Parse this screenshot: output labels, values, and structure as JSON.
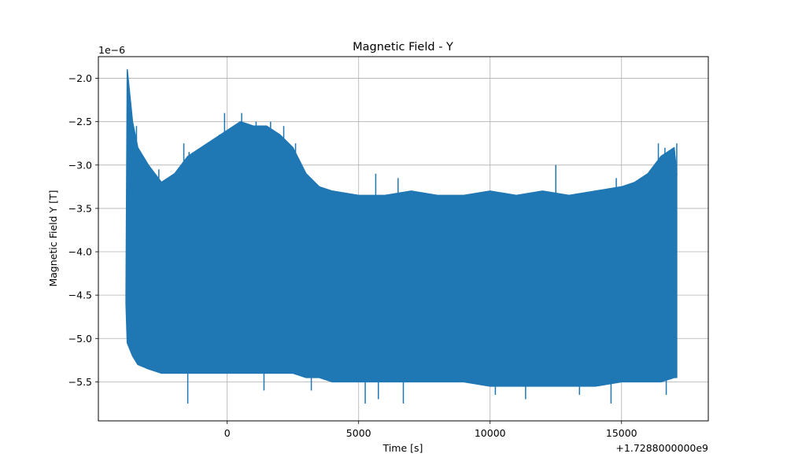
{
  "chart_data": {
    "type": "line",
    "title": "Magnetic Field - Y",
    "xlabel": "Time [s]",
    "ylabel": "Magnetic Field Y [T]",
    "x_offset_text": "+1.7288000000e9",
    "y_scale_text": "1e−6",
    "x_ticks": [
      0,
      5000,
      10000,
      15000
    ],
    "x_tick_labels": [
      "0",
      "5000",
      "10000",
      "15000"
    ],
    "y_ticks": [
      -2.0,
      -2.5,
      -3.0,
      -3.5,
      -4.0,
      -4.5,
      -5.0,
      -5.5
    ],
    "y_tick_labels": [
      "−2.0",
      "−2.5",
      "−3.0",
      "−3.5",
      "−4.0",
      "−4.5",
      "−5.0",
      "−5.5"
    ],
    "xlim": [
      -4900,
      18300
    ],
    "ylim": [
      -5.95,
      -1.75
    ],
    "grid": true,
    "color": "#1f77b4",
    "series": [
      {
        "name": "",
        "envelope_x": [
          -3850,
          -3800,
          -3600,
          -3400,
          -3000,
          -2500,
          -2000,
          -1500,
          -1000,
          -500,
          0,
          500,
          1000,
          1500,
          2000,
          2500,
          3000,
          3500,
          4000,
          5000,
          6000,
          7000,
          8000,
          9000,
          10000,
          11000,
          12000,
          13000,
          14000,
          15000,
          15500,
          16000,
          16500,
          17000,
          17100
        ],
        "envelope_upper": [
          -4.5,
          -1.9,
          -2.5,
          -2.8,
          -3.0,
          -3.2,
          -3.1,
          -2.9,
          -2.8,
          -2.7,
          -2.6,
          -2.5,
          -2.55,
          -2.55,
          -2.65,
          -2.8,
          -3.1,
          -3.25,
          -3.3,
          -3.35,
          -3.35,
          -3.3,
          -3.35,
          -3.35,
          -3.3,
          -3.35,
          -3.3,
          -3.35,
          -3.3,
          -3.25,
          -3.2,
          -3.1,
          -2.9,
          -2.8,
          -3.1
        ],
        "envelope_lower": [
          -4.6,
          -5.05,
          -5.2,
          -5.3,
          -5.35,
          -5.4,
          -5.4,
          -5.4,
          -5.4,
          -5.4,
          -5.4,
          -5.4,
          -5.4,
          -5.4,
          -5.4,
          -5.4,
          -5.45,
          -5.45,
          -5.5,
          -5.5,
          -5.5,
          -5.5,
          -5.5,
          -5.5,
          -5.55,
          -5.55,
          -5.55,
          -5.55,
          -5.55,
          -5.5,
          -5.5,
          -5.5,
          -5.5,
          -5.45,
          -5.45
        ],
        "spikes_high": [
          [
            -3800,
            -1.9
          ],
          [
            -3650,
            -2.4
          ],
          [
            -3450,
            -2.55
          ],
          [
            -3050,
            -3.0
          ],
          [
            -2600,
            -3.05
          ],
          [
            -1650,
            -2.75
          ],
          [
            -1450,
            -2.85
          ],
          [
            -300,
            -2.65
          ],
          [
            -100,
            -2.4
          ],
          [
            550,
            -2.4
          ],
          [
            1100,
            -2.5
          ],
          [
            1650,
            -2.5
          ],
          [
            2150,
            -2.55
          ],
          [
            2600,
            -2.75
          ],
          [
            5650,
            -3.1
          ],
          [
            6500,
            -3.15
          ],
          [
            12500,
            -3.0
          ],
          [
            14800,
            -3.15
          ],
          [
            16400,
            -2.75
          ],
          [
            16650,
            -2.8
          ],
          [
            17100,
            -2.75
          ]
        ],
        "spikes_low": [
          [
            -1500,
            -5.75
          ],
          [
            1400,
            -5.6
          ],
          [
            3200,
            -5.6
          ],
          [
            5250,
            -5.75
          ],
          [
            5750,
            -5.7
          ],
          [
            6700,
            -5.75
          ],
          [
            10200,
            -5.65
          ],
          [
            11350,
            -5.7
          ],
          [
            13400,
            -5.65
          ],
          [
            14600,
            -5.75
          ],
          [
            16700,
            -5.65
          ]
        ]
      }
    ]
  }
}
